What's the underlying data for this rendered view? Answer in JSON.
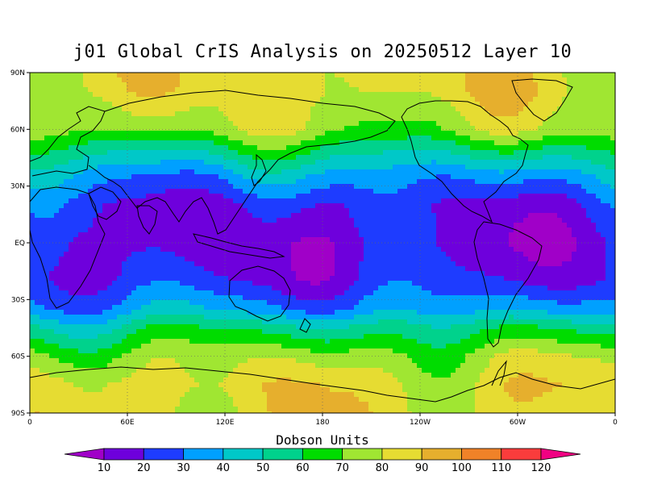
{
  "title": "j01 Global CrIS Analysis on 20250512 Layer 10",
  "colorbar": {
    "label": "Dobson Units",
    "levels": [
      10,
      20,
      30,
      40,
      50,
      60,
      70,
      80,
      90,
      100,
      110,
      120
    ],
    "colors": [
      "#a000c8",
      "#6e00dc",
      "#1e3cff",
      "#00a0ff",
      "#00c8c8",
      "#00d28c",
      "#00dc00",
      "#a0e632",
      "#e6dc32",
      "#e6af2d",
      "#f08228",
      "#fa3c3c",
      "#f00082"
    ]
  },
  "map": {
    "x_ticks": [
      "0",
      "60E",
      "120E",
      "180",
      "120W",
      "60W",
      "0"
    ],
    "y_ticks": [
      "90N",
      "60N",
      "30N",
      "EQ",
      "30S",
      "60S",
      "90S"
    ],
    "grid": "dotted"
  },
  "chart_data": {
    "type": "heatmap",
    "title": "j01 Global CrIS Analysis on 20250512 Layer 10",
    "units": "Dobson Units",
    "x_range_deg_lon": [
      0,
      360
    ],
    "y_range_deg_lat": [
      -90,
      90
    ],
    "zonal_pattern": [
      {
        "lat": 80,
        "value": 85
      },
      {
        "lat": 60,
        "value": 75
      },
      {
        "lat": 45,
        "value": 50
      },
      {
        "lat": 35,
        "value": 35
      },
      {
        "lat": 20,
        "value": 20
      },
      {
        "lat": 0,
        "value": 15
      },
      {
        "lat": -20,
        "value": 20
      },
      {
        "lat": -35,
        "value": 35
      },
      {
        "lat": -45,
        "value": 55
      },
      {
        "lat": -60,
        "value": 75
      },
      {
        "lat": -75,
        "value": 85
      }
    ]
  }
}
